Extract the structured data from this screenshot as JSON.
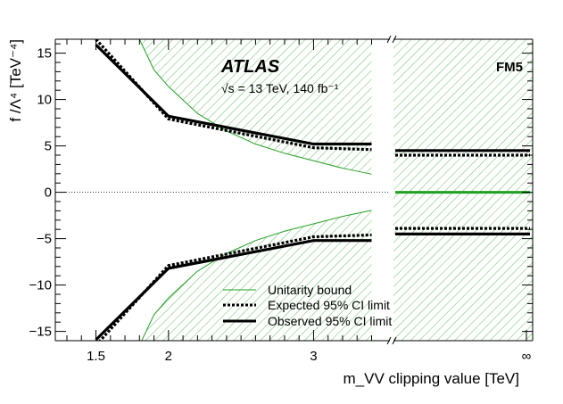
{
  "chart_data": {
    "type": "line",
    "title": "",
    "experiment": "ATLAS",
    "energy_lumi": "√s = 13 TeV, 140 fb⁻¹",
    "operator": "FM5",
    "xlabel": "m_VV clipping value [TeV]",
    "ylabel": "f /Λ⁴ [TeV⁻⁴]",
    "xlim": [
      1.22,
      3.52
    ],
    "ylim": [
      -16,
      16.5
    ],
    "x_ticks": [
      {
        "value": 1.5,
        "label": "1.5"
      },
      {
        "value": 2,
        "label": "2"
      },
      {
        "value": 3,
        "label": "3"
      },
      {
        "value": "inf",
        "label": "∞"
      }
    ],
    "y_ticks": [
      {
        "value": 15,
        "label": "15"
      },
      {
        "value": 10,
        "label": "10"
      },
      {
        "value": 5,
        "label": "5"
      },
      {
        "value": 0,
        "label": "0"
      },
      {
        "value": -5,
        "label": "−5"
      },
      {
        "value": -10,
        "label": "−10"
      },
      {
        "value": -15,
        "label": "−15"
      }
    ],
    "axis_break": "//",
    "series": [
      {
        "name": "Unitarity bound",
        "style": "thin-green",
        "color": "#22a022",
        "x": [
          1.8,
          1.9,
          2.0,
          2.2,
          2.4,
          2.6,
          2.8,
          3.0,
          3.2,
          3.4
        ],
        "upper": [
          16.5,
          13.2,
          11.4,
          8.5,
          6.6,
          5.2,
          4.2,
          3.4,
          2.6,
          1.95
        ],
        "lower": [
          -16.5,
          -13.2,
          -11.4,
          -8.5,
          -6.6,
          -5.2,
          -4.2,
          -3.4,
          -2.6,
          -1.95
        ],
        "at_infinity": [
          0.05,
          -0.05
        ]
      },
      {
        "name": "Expected 95% CI limit",
        "style": "dashed-black",
        "color": "#000000",
        "x": [
          1.5,
          2.0,
          3.0,
          3.4
        ],
        "upper": [
          16.5,
          7.9,
          4.8,
          4.6
        ],
        "lower": [
          -16.5,
          -7.9,
          -4.8,
          -4.6
        ],
        "at_infinity": [
          4.0,
          -3.9
        ]
      },
      {
        "name": "Observed 95% CI limit",
        "style": "solid-black",
        "color": "#000000",
        "x": [
          1.5,
          2.0,
          3.0,
          3.4
        ],
        "upper": [
          15.9,
          8.2,
          5.2,
          5.2
        ],
        "lower": [
          -15.9,
          -8.2,
          -5.2,
          -5.2
        ],
        "at_infinity": [
          4.5,
          -4.5
        ]
      }
    ],
    "excluded_region_hatch_color": "#22a022",
    "legend": [
      "Unitarity bound",
      "Expected 95% CI limit",
      "Observed 95% CI limit"
    ],
    "legend_position": "bottom-center",
    "reference_line": {
      "y": 0,
      "style": "dotted"
    }
  }
}
